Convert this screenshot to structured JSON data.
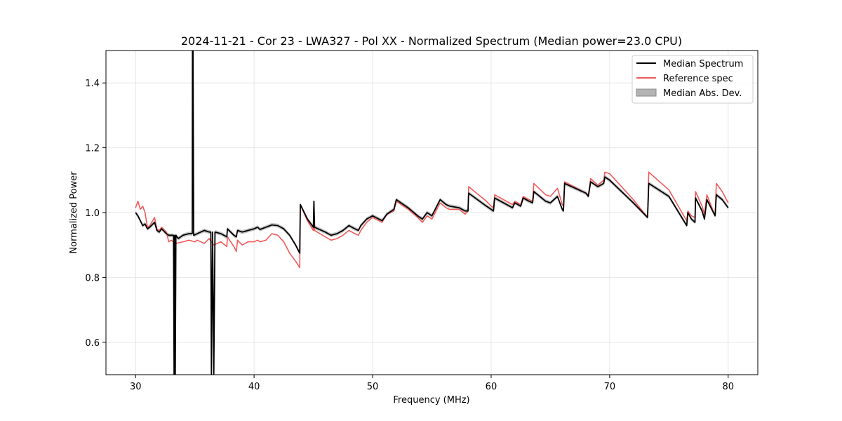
{
  "chart_data": {
    "type": "line",
    "title": "2024-11-21 - Cor 23 - LWA327 - Pol XX - Normalized Spectrum (Median power=23.0 CPU)",
    "xlabel": "Frequency (MHz)",
    "ylabel": "Normalized Power",
    "xlim": [
      27.5,
      82.5
    ],
    "ylim": [
      0.5,
      1.5
    ],
    "xticks": [
      30,
      40,
      50,
      60,
      70,
      80
    ],
    "yticks": [
      0.6,
      0.8,
      1.0,
      1.2,
      1.4
    ],
    "xtick_labels": [
      "30",
      "40",
      "50",
      "60",
      "70",
      "80"
    ],
    "ytick_labels": [
      "0.6",
      "0.8",
      "1.0",
      "1.2",
      "1.4"
    ],
    "grid": true,
    "legend_position": "top-right",
    "legend": {
      "median": "Median Spectrum",
      "reference": "Reference spec",
      "mad": "Median Abs. Dev."
    },
    "colors": {
      "median": "#000000",
      "reference": "#f05a5a",
      "mad": "#b4b4b4"
    },
    "mad_halfwidth": 0.006,
    "series": [
      {
        "name": "Median Spectrum",
        "x": [
          30.0,
          30.2,
          30.4,
          30.6,
          30.8,
          31.0,
          31.2,
          31.6,
          31.8,
          32.0,
          32.2,
          32.6,
          32.8,
          33.0,
          33.2,
          33.25,
          33.3,
          33.35,
          33.4,
          33.6,
          34.0,
          34.5,
          34.78,
          34.8,
          34.85,
          34.9,
          34.92,
          35.2,
          35.8,
          36.2,
          36.35,
          36.4,
          36.5,
          36.6,
          36.7,
          37.2,
          37.7,
          37.75,
          38.3,
          38.5,
          38.6,
          39.0,
          39.5,
          40.0,
          40.3,
          40.5,
          41.0,
          41.5,
          42.0,
          42.5,
          43.0,
          43.5,
          43.85,
          43.9,
          44.5,
          45.0,
          45.05,
          45.1,
          46.0,
          46.5,
          47.0,
          47.5,
          48.0,
          48.5,
          48.8,
          49.0,
          49.5,
          50.0,
          50.8,
          51.2,
          51.8,
          52.0,
          53.0,
          53.8,
          54.2,
          54.6,
          55.0,
          55.7,
          56.2,
          56.5,
          57.3,
          57.8,
          58.05,
          58.1,
          59.6,
          60.0,
          60.2,
          60.3,
          61.8,
          62.0,
          62.5,
          62.7,
          63.2,
          63.5,
          63.6,
          64.6,
          65.0,
          65.6,
          66.0,
          66.1,
          66.2,
          68.0,
          68.2,
          68.4,
          69.0,
          69.5,
          69.6,
          70.0,
          72.0,
          73.2,
          73.3,
          75.0,
          76.5,
          76.6,
          76.9,
          77.2,
          77.25,
          77.8,
          78.0,
          78.2,
          78.9,
          79.0,
          79.5,
          80.0
        ],
        "values": [
          1.0,
          0.99,
          0.975,
          0.96,
          0.965,
          0.95,
          0.955,
          0.97,
          0.945,
          0.94,
          0.95,
          0.935,
          0.93,
          0.93,
          0.93,
          0.5,
          0.93,
          0.5,
          0.93,
          0.92,
          0.93,
          0.935,
          0.935,
          1.5,
          1.5,
          0.93,
          0.93,
          0.935,
          0.945,
          0.94,
          0.94,
          0.5,
          0.94,
          0.5,
          0.94,
          0.935,
          0.925,
          0.95,
          0.93,
          0.925,
          0.945,
          0.94,
          0.945,
          0.95,
          0.955,
          0.948,
          0.955,
          0.962,
          0.96,
          0.95,
          0.93,
          0.9,
          0.875,
          1.025,
          0.98,
          0.955,
          1.035,
          0.955,
          0.94,
          0.93,
          0.935,
          0.945,
          0.96,
          0.95,
          0.945,
          0.96,
          0.98,
          0.99,
          0.975,
          0.995,
          1.01,
          1.04,
          1.015,
          0.99,
          0.98,
          1.0,
          0.99,
          1.04,
          1.025,
          1.02,
          1.015,
          1.005,
          1.005,
          1.06,
          1.02,
          1.01,
          1.005,
          1.045,
          1.015,
          1.03,
          1.02,
          1.045,
          1.035,
          1.03,
          1.065,
          1.035,
          1.03,
          1.05,
          1.01,
          1.005,
          1.09,
          1.06,
          1.05,
          1.095,
          1.08,
          1.09,
          1.11,
          1.1,
          1.03,
          0.985,
          1.09,
          1.05,
          0.96,
          1.0,
          0.98,
          0.97,
          1.045,
          1.005,
          0.98,
          1.04,
          0.99,
          1.055,
          1.04,
          1.015
        ]
      },
      {
        "name": "Reference spec",
        "x": [
          30.0,
          30.2,
          30.4,
          30.6,
          30.8,
          31.0,
          31.2,
          31.6,
          31.8,
          32.0,
          32.2,
          32.6,
          32.8,
          33.0,
          33.4,
          34.0,
          34.5,
          35.0,
          35.2,
          35.8,
          36.2,
          36.6,
          37.2,
          37.7,
          37.75,
          38.3,
          38.5,
          38.6,
          39.0,
          39.5,
          40.0,
          40.3,
          40.5,
          41.0,
          41.5,
          42.0,
          42.5,
          43.0,
          43.5,
          43.85,
          43.9,
          44.5,
          45.0,
          45.05,
          45.1,
          46.0,
          46.5,
          47.0,
          47.5,
          48.0,
          48.5,
          48.8,
          49.0,
          49.5,
          50.0,
          50.8,
          51.2,
          51.8,
          52.0,
          53.0,
          53.8,
          54.2,
          54.6,
          55.0,
          55.7,
          56.2,
          56.5,
          57.3,
          57.8,
          58.05,
          58.1,
          59.6,
          60.0,
          60.2,
          60.3,
          61.8,
          62.0,
          62.5,
          62.7,
          63.2,
          63.5,
          63.6,
          64.6,
          65.0,
          65.6,
          66.0,
          66.1,
          66.2,
          68.0,
          68.2,
          68.4,
          69.0,
          69.5,
          69.6,
          70.0,
          72.0,
          73.2,
          73.3,
          75.0,
          76.5,
          76.6,
          76.9,
          77.2,
          77.25,
          77.8,
          78.0,
          78.2,
          78.9,
          79.0,
          79.5,
          80.0
        ],
        "values": [
          1.015,
          1.035,
          1.01,
          1.02,
          1.0,
          0.955,
          0.96,
          0.985,
          0.95,
          0.945,
          0.955,
          0.94,
          0.91,
          0.915,
          0.905,
          0.91,
          0.915,
          0.91,
          0.915,
          0.905,
          0.92,
          0.9,
          0.91,
          0.895,
          0.925,
          0.895,
          0.88,
          0.915,
          0.9,
          0.91,
          0.91,
          0.915,
          0.91,
          0.915,
          0.935,
          0.93,
          0.91,
          0.875,
          0.85,
          0.83,
          1.025,
          0.975,
          0.945,
          1.035,
          0.945,
          0.925,
          0.915,
          0.92,
          0.93,
          0.945,
          0.935,
          0.93,
          0.945,
          0.97,
          0.985,
          0.97,
          0.995,
          1.005,
          1.035,
          1.01,
          0.985,
          0.97,
          0.99,
          0.98,
          1.03,
          1.015,
          1.01,
          1.01,
          0.995,
          1.005,
          1.08,
          1.035,
          1.02,
          1.015,
          1.055,
          1.025,
          1.035,
          1.025,
          1.05,
          1.04,
          1.035,
          1.09,
          1.055,
          1.05,
          1.075,
          1.025,
          1.02,
          1.095,
          1.06,
          1.055,
          1.105,
          1.085,
          1.1,
          1.125,
          1.12,
          1.04,
          0.985,
          1.125,
          1.07,
          0.975,
          1.005,
          0.99,
          0.985,
          1.065,
          1.02,
          0.995,
          1.055,
          0.99,
          1.09,
          1.065,
          1.03
        ]
      }
    ]
  }
}
